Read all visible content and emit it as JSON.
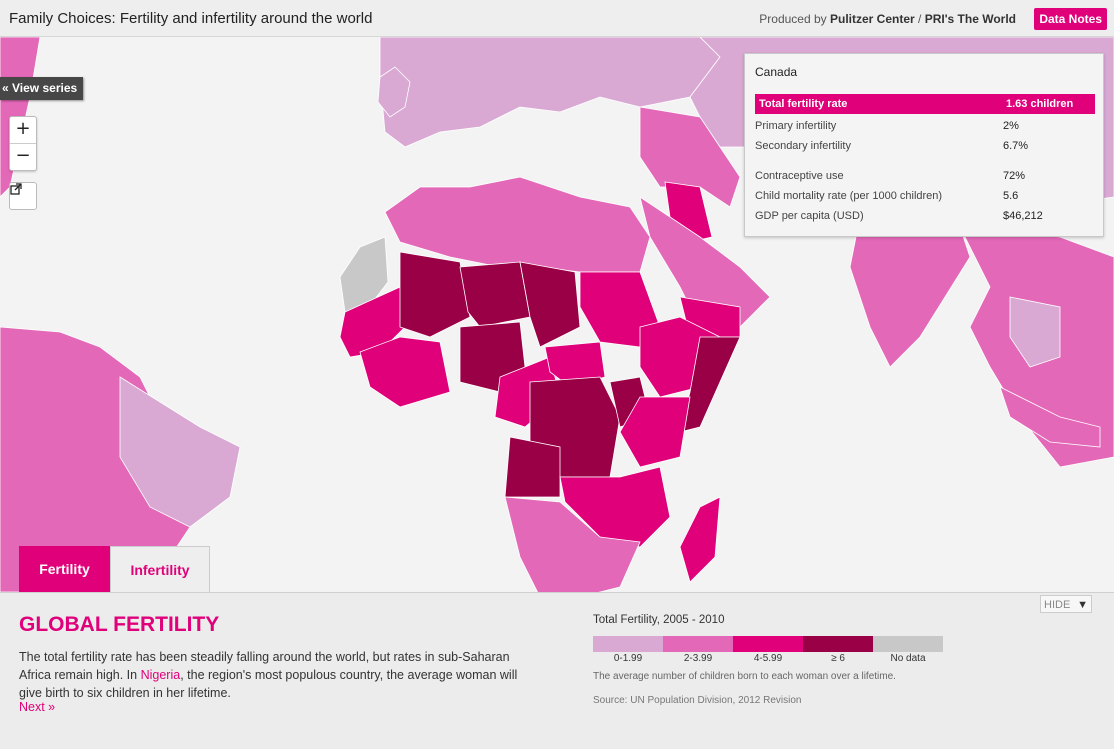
{
  "header": {
    "title": "Family Choices: Fertility and infertility around the world",
    "credits_prefix": "Produced by ",
    "credits_org1": "Pulitzer Center",
    "credits_sep": " / ",
    "credits_org2": "PRI's The World",
    "data_notes_label": "Data Notes"
  },
  "map": {
    "view_series_label": "« View series",
    "zoom_in_label": "+",
    "zoom_out_label": "−",
    "share_icon": "external-link-icon",
    "colors": {
      "ocean": "#f3f3f3",
      "bin_0_2": "#d9a9d4",
      "bin_2_4": "#e468b8",
      "bin_4_6": "#e0007a",
      "bin_6_plus": "#9a0046",
      "no_data": "#c8c8c8"
    }
  },
  "info_panel": {
    "country": "Canada",
    "rows": [
      {
        "label": "Total fertility rate",
        "value": "1.63 children",
        "highlight": true
      },
      {
        "label": "Primary infertility",
        "value": "2%"
      },
      {
        "label": "Secondary infertility",
        "value": "6.7%"
      },
      {
        "label": "Contraceptive use",
        "value": "72%"
      },
      {
        "label": "Child mortality rate (per 1000 children)",
        "value": "5.6"
      },
      {
        "label": "GDP per capita (USD)",
        "value": "$46,212"
      }
    ]
  },
  "tabs": [
    {
      "label": "Fertility",
      "active": true
    },
    {
      "label": "Infertility",
      "active": false
    }
  ],
  "story": {
    "title": "GLOBAL FERTILITY",
    "text_before": "The total fertility rate has been steadily falling around the world, but rates in sub-Saharan Africa remain high. In ",
    "link": "Nigeria",
    "text_after": ", the region's most populous country, the average woman will give birth to six children in her lifetime.",
    "next_label": "Next »"
  },
  "hide_label": "HIDE",
  "legend": {
    "title": "Total Fertility, 2005 - 2010",
    "bins": [
      {
        "label": "0-1.99",
        "color": "#d9a9d4"
      },
      {
        "label": "2-3.99",
        "color": "#e468b8"
      },
      {
        "label": "4-5.99",
        "color": "#e0007a"
      },
      {
        "label": "≥ 6",
        "color": "#9a0046"
      },
      {
        "label": "No data",
        "color": "#c8c8c8"
      }
    ],
    "note": "The average number of children born to each woman over a lifetime.",
    "source": "Source: UN Population Division, 2012 Revision"
  }
}
